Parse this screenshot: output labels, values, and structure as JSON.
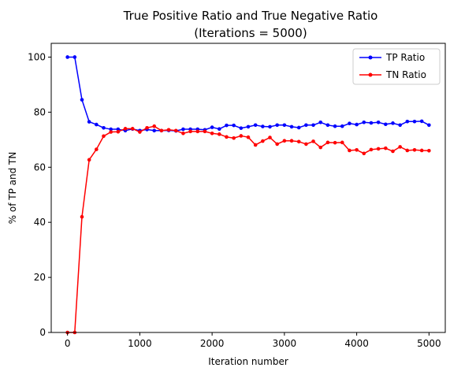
{
  "chart_data": {
    "type": "line",
    "title": "True Positive Ratio and True Negative Ratio",
    "subtitle": "(Iterations = 5000)",
    "xlabel": "Iteration number",
    "ylabel": "% of TP and TN",
    "xlim": [
      -225,
      5225
    ],
    "ylim": [
      0,
      105
    ],
    "xticks": [
      0,
      1000,
      2000,
      3000,
      4000,
      5000
    ],
    "yticks": [
      0,
      20,
      40,
      60,
      80,
      100
    ],
    "grid": false,
    "legend_position": "top-right",
    "x": [
      0,
      100,
      200,
      300,
      400,
      500,
      600,
      700,
      800,
      900,
      1000,
      1100,
      1200,
      1300,
      1400,
      1500,
      1600,
      1700,
      1800,
      1900,
      2000,
      2100,
      2200,
      2300,
      2400,
      2500,
      2600,
      2700,
      2800,
      2900,
      3000,
      3100,
      3200,
      3300,
      3400,
      3500,
      3600,
      3700,
      3800,
      3900,
      4000,
      4100,
      4200,
      4300,
      4400,
      4500,
      4600,
      4700,
      4800,
      4900,
      5000
    ],
    "series": [
      {
        "name": "TP Ratio",
        "color": "#0000ff",
        "values": [
          100.0,
          100.0,
          84.5,
          76.5,
          75.5,
          74.3,
          73.8,
          73.8,
          73.3,
          73.9,
          73.3,
          73.7,
          73.3,
          73.3,
          73.4,
          73.2,
          73.8,
          73.8,
          73.8,
          73.6,
          74.5,
          73.9,
          75.2,
          75.2,
          74.2,
          74.7,
          75.3,
          74.8,
          74.7,
          75.3,
          75.3,
          74.7,
          74.4,
          75.3,
          75.3,
          76.3,
          75.3,
          74.9,
          74.9,
          75.9,
          75.5,
          76.3,
          76.1,
          76.3,
          75.6,
          76.0,
          75.3,
          76.6,
          76.6,
          76.7,
          75.3
        ]
      },
      {
        "name": "TN Ratio",
        "color": "#ff0000",
        "values": [
          0.0,
          0.0,
          42.0,
          62.7,
          66.5,
          71.3,
          72.8,
          72.9,
          74.0,
          74.0,
          72.8,
          74.3,
          74.9,
          73.3,
          73.6,
          73.3,
          72.3,
          73.0,
          73.0,
          73.0,
          72.3,
          72.0,
          71.0,
          70.6,
          71.4,
          70.9,
          68.1,
          69.5,
          70.8,
          68.4,
          69.6,
          69.6,
          69.3,
          68.4,
          69.4,
          67.2,
          69.0,
          68.9,
          69.0,
          66.1,
          66.3,
          65.0,
          66.4,
          66.7,
          66.9,
          65.8,
          67.4,
          66.1,
          66.3,
          66.1,
          66.0
        ]
      }
    ]
  }
}
